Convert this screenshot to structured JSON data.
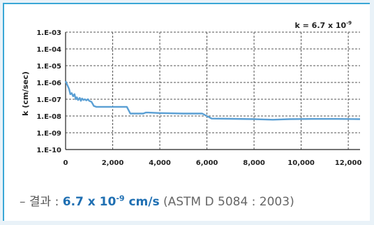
{
  "chart_data": {
    "type": "line",
    "title": "k = 6.7 x 10",
    "title_exponent": "-9",
    "xlabel": "",
    "ylabel": "k (cm/sec)",
    "x_scale": "linear",
    "y_scale": "log",
    "xlim": [
      0,
      12500
    ],
    "ylim": [
      1e-10,
      0.001
    ],
    "x_ticks": [
      0,
      2000,
      4000,
      6000,
      8000,
      10000,
      12000
    ],
    "x_tick_labels": [
      "0",
      "2,000",
      "4,000",
      "6,000",
      "8,000",
      "10,000",
      "12,000"
    ],
    "y_ticks": [
      0.001,
      0.0001,
      1e-05,
      1e-06,
      1e-07,
      1e-08,
      1e-09,
      1e-10
    ],
    "y_tick_labels": [
      "1.E-03",
      "1.E-04",
      "1.E-05",
      "1.E-06",
      "1.E-07",
      "1.E-08",
      "1.E-09",
      "1.E-10"
    ],
    "grid": true,
    "series": [
      {
        "color": "#5a9fd4",
        "x": [
          0,
          150,
          200,
          260,
          320,
          380,
          430,
          480,
          530,
          600,
          650,
          700,
          760,
          820,
          880,
          950,
          1000,
          1100,
          1200,
          1300,
          1500,
          2000,
          2600,
          2750,
          3300,
          3400,
          3500,
          4000,
          5000,
          5800,
          6200,
          7000,
          8000,
          8800,
          9500,
          10500,
          11500,
          12500
        ],
        "y": [
          1.2e-06,
          4e-07,
          2e-07,
          2.3e-07,
          1.5e-07,
          2e-07,
          1e-07,
          1.3e-07,
          9e-08,
          1.2e-07,
          8e-08,
          1.1e-07,
          9e-08,
          1e-07,
          8.5e-08,
          1e-07,
          8e-08,
          7e-08,
          4e-08,
          3.5e-08,
          3.5e-08,
          3.5e-08,
          3.5e-08,
          1.4e-08,
          1.4e-08,
          1.6e-08,
          1.6e-08,
          1.5e-08,
          1.4e-08,
          1.4e-08,
          7e-09,
          6.8e-09,
          6.5e-09,
          6e-09,
          6.5e-09,
          6.7e-09,
          6.7e-09,
          6.5e-09
        ]
      }
    ]
  },
  "caption": {
    "dash": "–",
    "label": "결과 : ",
    "value_base": "6.7 x 10",
    "value_exp": "-9",
    "value_unit": " cm/s",
    "reference": " (ASTM D 5084 : 2003)"
  }
}
